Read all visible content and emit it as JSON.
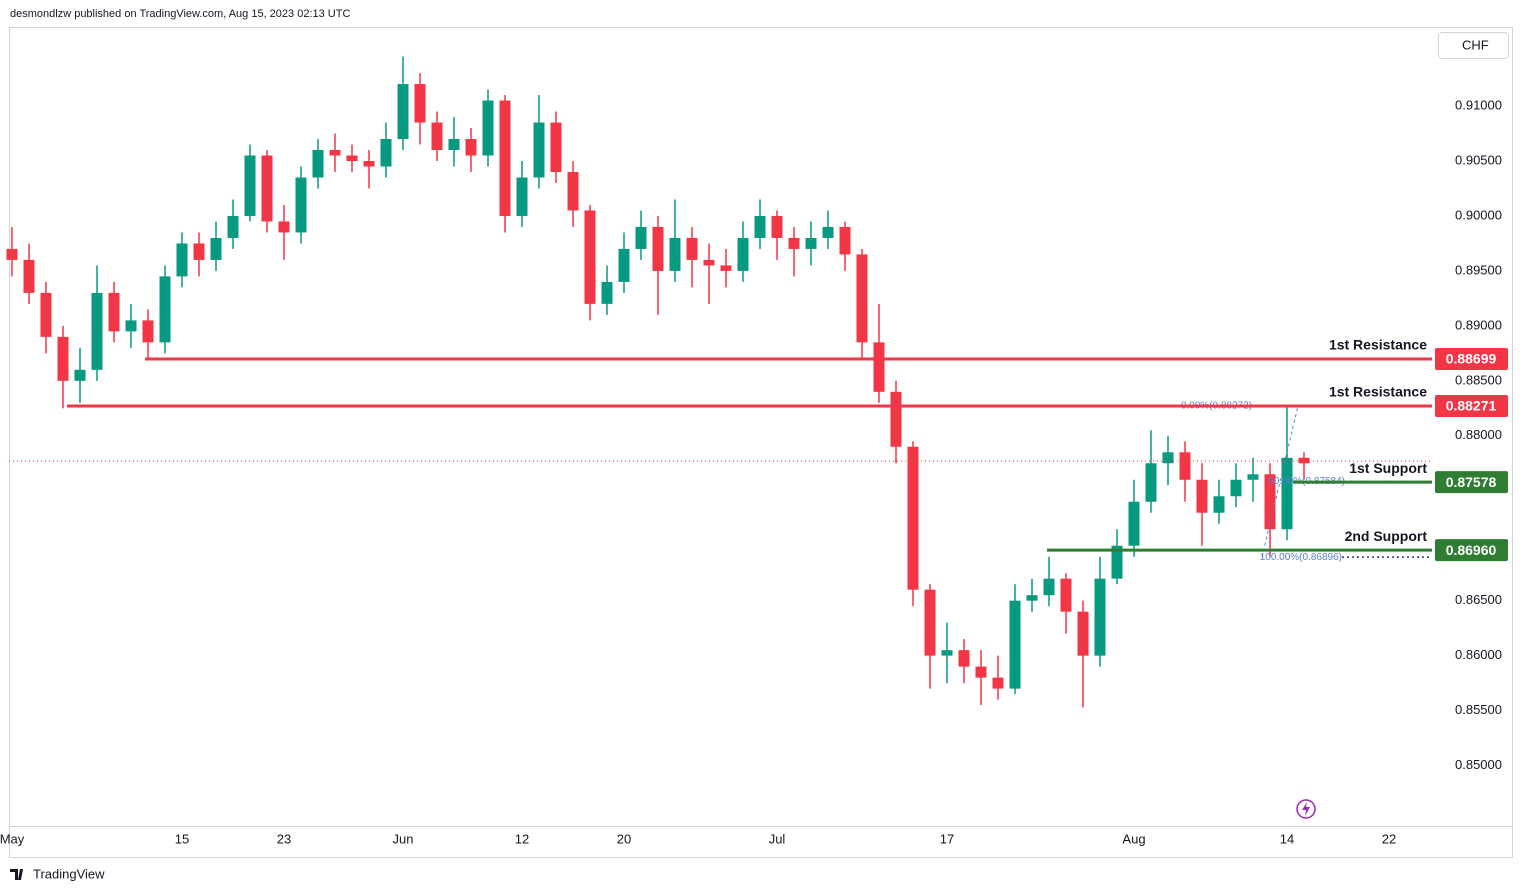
{
  "header": "desmondlzw published on TradingView.com, Aug 15, 2023 02:13 UTC",
  "currency": "CHF",
  "footer": "TradingView",
  "chart_data": {
    "type": "candlestick",
    "categories": [
      "May",
      null,
      null,
      null,
      null,
      null,
      null,
      null,
      null,
      null,
      "15",
      null,
      null,
      null,
      null,
      null,
      "23",
      null,
      null,
      null,
      null,
      null,
      null,
      "Jun",
      null,
      null,
      null,
      null,
      null,
      null,
      "12",
      null,
      null,
      null,
      null,
      null,
      "20",
      null,
      null,
      null,
      null,
      null,
      null,
      null,
      null,
      "Jul",
      null,
      null,
      null,
      null,
      null,
      null,
      null,
      null,
      null,
      "17",
      null,
      null,
      null,
      null,
      null,
      null,
      null,
      null,
      null,
      null,
      "Aug",
      null,
      null,
      null,
      null,
      null,
      null,
      null,
      null,
      "14",
      null,
      null,
      null,
      null,
      null,
      "22"
    ],
    "open": [
      0.897,
      0.896,
      0.893,
      0.889,
      0.885,
      0.886,
      0.893,
      0.8895,
      0.8905,
      0.8885,
      0.8945,
      0.8975,
      0.896,
      0.898,
      0.9,
      0.9055,
      0.8995,
      0.8985,
      0.9035,
      0.906,
      0.9055,
      0.905,
      0.9045,
      0.907,
      0.912,
      0.9085,
      0.906,
      0.907,
      0.9055,
      0.9105,
      0.9,
      0.9035,
      0.9085,
      0.904,
      0.9005,
      0.892,
      0.894,
      0.897,
      0.899,
      0.895,
      0.898,
      0.896,
      0.8955,
      0.895,
      0.898,
      0.9,
      0.898,
      0.897,
      0.898,
      0.899,
      0.8965,
      0.8885,
      0.884,
      0.879,
      0.866,
      0.86,
      0.8605,
      0.859,
      0.858,
      0.857,
      0.865,
      0.8655,
      0.867,
      0.864,
      0.86,
      0.867,
      0.87,
      0.874,
      0.8775,
      0.8785,
      0.876,
      0.873,
      0.8745,
      0.876,
      0.8765,
      0.8715,
      0.878,
      null,
      null,
      null,
      null,
      null
    ],
    "high": [
      0.899,
      0.8975,
      0.894,
      0.89,
      0.888,
      0.8955,
      0.894,
      0.892,
      0.8915,
      0.8955,
      0.8985,
      0.8985,
      0.8995,
      0.9015,
      0.9065,
      0.906,
      0.901,
      0.9045,
      0.907,
      0.9075,
      0.9065,
      0.906,
      0.9085,
      0.9145,
      0.913,
      0.9095,
      0.909,
      0.908,
      0.9115,
      0.911,
      0.905,
      0.911,
      0.9095,
      0.905,
      0.901,
      0.8955,
      0.8985,
      0.9005,
      0.9,
      0.9015,
      0.899,
      0.8975,
      0.897,
      0.8995,
      0.9015,
      0.9005,
      0.899,
      0.8995,
      0.9005,
      0.8995,
      0.897,
      0.892,
      0.885,
      0.8795,
      0.8665,
      0.863,
      0.8615,
      0.8605,
      0.86,
      0.8665,
      0.867,
      0.869,
      0.8675,
      0.865,
      0.869,
      0.8715,
      0.876,
      0.8805,
      0.88,
      0.8795,
      0.8775,
      0.876,
      0.8775,
      0.878,
      0.8775,
      0.8827,
      0.8785,
      null,
      null,
      null,
      null,
      null
    ],
    "low": [
      0.8945,
      0.892,
      0.8875,
      0.8825,
      0.883,
      0.885,
      0.8885,
      0.888,
      0.887,
      0.8875,
      0.8935,
      0.8945,
      0.895,
      0.897,
      0.8995,
      0.8985,
      0.896,
      0.8975,
      0.9025,
      0.904,
      0.904,
      0.9025,
      0.9035,
      0.906,
      0.9065,
      0.905,
      0.9045,
      0.904,
      0.9045,
      0.8985,
      0.899,
      0.9025,
      0.903,
      0.899,
      0.8905,
      0.891,
      0.893,
      0.896,
      0.891,
      0.894,
      0.8935,
      0.892,
      0.8935,
      0.894,
      0.897,
      0.896,
      0.8945,
      0.8955,
      0.897,
      0.895,
      0.887,
      0.883,
      0.8775,
      0.8645,
      0.857,
      0.8575,
      0.8575,
      0.8555,
      0.856,
      0.8565,
      0.864,
      0.8645,
      0.862,
      0.8553,
      0.859,
      0.8665,
      0.869,
      0.873,
      0.8755,
      0.874,
      0.87,
      0.872,
      0.8735,
      0.874,
      0.869,
      0.8705,
      0.876,
      null,
      null,
      null,
      null,
      null
    ],
    "close": [
      0.896,
      0.893,
      0.889,
      0.885,
      0.886,
      0.893,
      0.8895,
      0.8905,
      0.8885,
      0.8945,
      0.8975,
      0.896,
      0.898,
      0.9,
      0.9055,
      0.8995,
      0.8985,
      0.9035,
      0.906,
      0.9055,
      0.905,
      0.9045,
      0.907,
      0.912,
      0.9085,
      0.906,
      0.907,
      0.9055,
      0.9105,
      0.9,
      0.9035,
      0.9085,
      0.904,
      0.9005,
      0.892,
      0.894,
      0.897,
      0.899,
      0.895,
      0.898,
      0.896,
      0.8955,
      0.895,
      0.898,
      0.9,
      0.898,
      0.897,
      0.898,
      0.899,
      0.8965,
      0.8885,
      0.884,
      0.879,
      0.866,
      0.86,
      0.8605,
      0.859,
      0.858,
      0.857,
      0.865,
      0.8655,
      0.867,
      0.864,
      0.86,
      0.867,
      0.87,
      0.874,
      0.8775,
      0.8785,
      0.876,
      0.873,
      0.8745,
      0.876,
      0.8765,
      0.8715,
      0.878,
      0.8775,
      null,
      null,
      null,
      null,
      null
    ],
    "up_color": "#089981",
    "down_color": "#f23645",
    "ylim": [
      0.8445,
      0.9171
    ],
    "yticks": [
      {
        "value": 0.85,
        "label": "0.85000"
      },
      {
        "value": 0.855,
        "label": "0.85500"
      },
      {
        "value": 0.86,
        "label": "0.86000"
      },
      {
        "value": 0.865,
        "label": "0.86500"
      },
      {
        "value": 0.88,
        "label": "0.88000"
      },
      {
        "value": 0.885,
        "label": "0.88500"
      },
      {
        "value": 0.89,
        "label": "0.89000"
      },
      {
        "value": 0.895,
        "label": "0.89500"
      },
      {
        "value": 0.9,
        "label": "0.90000"
      },
      {
        "value": 0.905,
        "label": "0.90500"
      },
      {
        "value": 0.91,
        "label": "0.91000"
      }
    ],
    "last_price": 0.8777,
    "levels": [
      {
        "name": "1st Resistance",
        "value": 0.88699,
        "value_label": "0.88699",
        "color": "#f23645"
      },
      {
        "name": "1st Resistance",
        "value": 0.88271,
        "value_label": "0.88271",
        "color": "#f23645"
      },
      {
        "name": "1st Support",
        "value": 0.87578,
        "value_label": "0.87578",
        "color": "#2e7d32"
      },
      {
        "name": "2nd Support",
        "value": 0.8696,
        "value_label": "0.86960",
        "color": "#2e7d32"
      }
    ],
    "fib_levels": [
      {
        "value": 0.88272,
        "label": "0.00%(0.88272)"
      },
      {
        "value": 0.87584,
        "label": "50.00%(0.87584)"
      },
      {
        "value": 0.86896,
        "label": "100.00%(0.86896)"
      }
    ]
  }
}
